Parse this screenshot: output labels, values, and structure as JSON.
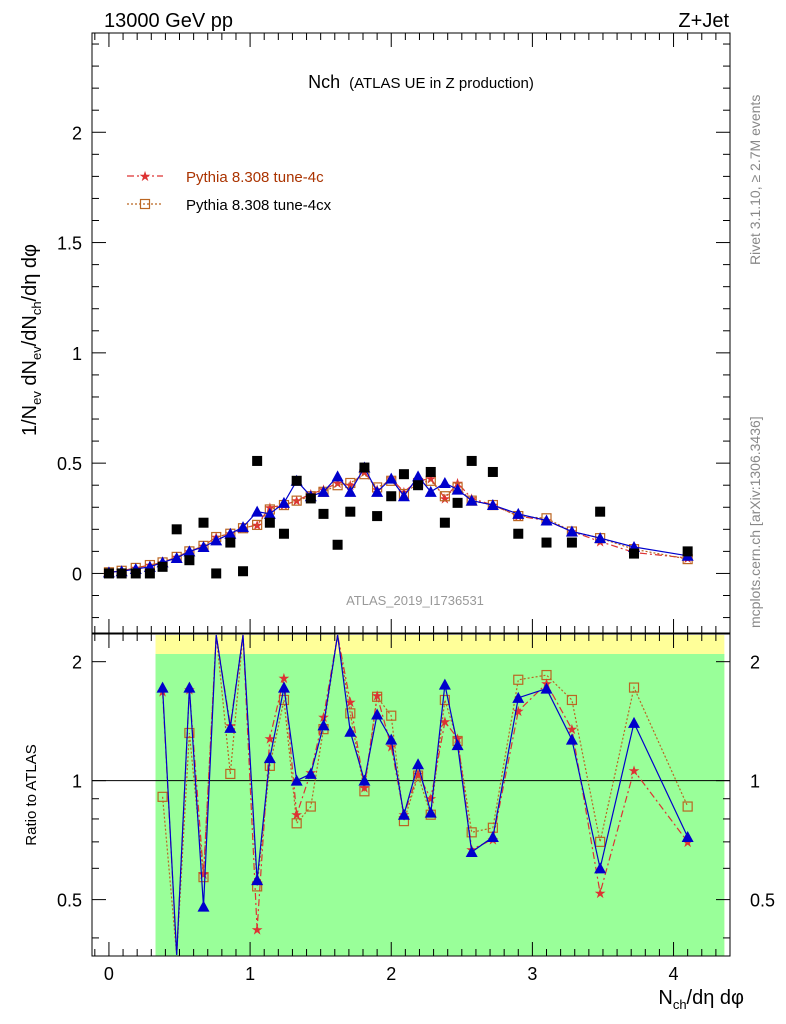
{
  "header": {
    "left": "13000 GeV pp",
    "right": "Z+Jet"
  },
  "side": {
    "rivet": "Rivet 3.1.10, ≥ 2.7M events",
    "mcplots": "mcplots.cern.ch [arXiv:1306.3436]"
  },
  "main_panel": {
    "title_main": "Nch",
    "title_sub": "(ATLAS UE in Z production)",
    "watermark": "ATLAS_2019_I1736531",
    "ylabel_parts": [
      "1/N",
      "ev",
      " dN",
      "ev",
      "/dN",
      "ch",
      "/dη dφ"
    ]
  },
  "ratio_panel": {
    "ylabel": "Ratio to ATLAS"
  },
  "xlabel_parts": [
    "N",
    "ch",
    "/dη dφ"
  ],
  "colors": {
    "data": "#000000",
    "tune_4c": "#dd3333",
    "tune_4cx": "#bb6622",
    "default": "#0000cc",
    "band_green": "#99ff99",
    "band_yellow": "#ffff99",
    "legend_4c_text": "#aa3300"
  },
  "chart_data": {
    "type": "scatter",
    "xlim": [
      -0.12,
      4.4
    ],
    "main_ylim": [
      -0.27,
      2.45
    ],
    "ratio_ylim": [
      0.36,
      2.35
    ],
    "ratio_scale": "log",
    "x_ticks": [
      "0",
      "1",
      "2",
      "3",
      "4"
    ],
    "main_y_ticks": [
      "0",
      "0.5",
      "1",
      "1.5",
      "2"
    ],
    "ratio_y_ticks": [
      "0.5",
      "1",
      "2"
    ],
    "x": [
      0.0,
      0.09,
      0.19,
      0.29,
      0.38,
      0.48,
      0.57,
      0.67,
      0.76,
      0.86,
      0.95,
      1.05,
      1.14,
      1.24,
      1.33,
      1.43,
      1.52,
      1.62,
      1.71,
      1.81,
      1.9,
      2.0,
      2.09,
      2.19,
      2.28,
      2.38,
      2.47,
      2.57,
      2.72,
      2.9,
      3.1,
      3.28,
      3.48,
      3.72,
      4.1
    ],
    "series": [
      {
        "name": "",
        "key": "data",
        "values": [
          0.0,
          0.0,
          0.0,
          0.0,
          0.03,
          0.2,
          0.06,
          0.23,
          0.0,
          0.14,
          0.01,
          0.51,
          0.23,
          0.18,
          0.42,
          0.34,
          0.27,
          0.13,
          0.28,
          0.48,
          0.26,
          0.35,
          0.45,
          0.4,
          0.46,
          0.23,
          0.32,
          0.51,
          0.46,
          0.18,
          0.14,
          0.14,
          0.28,
          0.09,
          0.1
        ]
      },
      {
        "name": "Pythia 8.308 tune-4c",
        "key": "tune_4c",
        "values": [
          0.005,
          0.012,
          0.025,
          0.038,
          0.05,
          0.075,
          0.1,
          0.125,
          0.165,
          0.18,
          0.205,
          0.22,
          0.3,
          0.31,
          0.33,
          0.36,
          0.38,
          0.41,
          0.4,
          0.46,
          0.38,
          0.43,
          0.37,
          0.42,
          0.43,
          0.34,
          0.41,
          0.34,
          0.31,
          0.26,
          0.24,
          0.19,
          0.145,
          0.095,
          0.07
        ]
      },
      {
        "name": "Pythia 8.308 tune-4cx",
        "key": "tune_4cx",
        "values": [
          0.005,
          0.012,
          0.025,
          0.038,
          0.05,
          0.075,
          0.1,
          0.125,
          0.165,
          0.18,
          0.205,
          0.22,
          0.29,
          0.31,
          0.33,
          0.35,
          0.37,
          0.4,
          0.41,
          0.45,
          0.39,
          0.42,
          0.36,
          0.41,
          0.42,
          0.35,
          0.39,
          0.33,
          0.31,
          0.26,
          0.25,
          0.19,
          0.16,
          0.11,
          0.065
        ]
      },
      {
        "name": "",
        "key": "default",
        "values": [
          0.005,
          0.01,
          0.02,
          0.03,
          0.05,
          0.07,
          0.1,
          0.12,
          0.15,
          0.18,
          0.21,
          0.28,
          0.27,
          0.32,
          0.42,
          0.35,
          0.37,
          0.44,
          0.37,
          0.48,
          0.37,
          0.43,
          0.35,
          0.44,
          0.37,
          0.41,
          0.38,
          0.33,
          0.31,
          0.27,
          0.24,
          0.19,
          0.16,
          0.12,
          0.08
        ]
      }
    ],
    "ratio_series": [
      {
        "key": "tune_4c",
        "values": [
          null,
          null,
          null,
          null,
          1.68,
          0.33,
          1.7,
          0.58,
          3.0,
          1.38,
          3.0,
          0.42,
          1.28,
          1.82,
          0.82,
          1.05,
          1.45,
          3.0,
          1.58,
          0.96,
          1.64,
          1.22,
          0.82,
          1.04,
          0.9,
          1.41,
          1.28,
          0.67,
          0.71,
          1.5,
          1.76,
          1.35,
          0.52,
          1.06,
          0.7
        ]
      },
      {
        "key": "tune_4cx",
        "values": [
          null,
          null,
          null,
          null,
          0.91,
          0.33,
          1.32,
          0.57,
          3.0,
          1.04,
          3.0,
          0.54,
          1.09,
          1.6,
          0.78,
          0.86,
          1.35,
          3.0,
          1.48,
          0.94,
          1.63,
          1.46,
          0.79,
          1.03,
          0.82,
          1.6,
          1.26,
          0.74,
          0.76,
          1.8,
          1.85,
          1.6,
          0.7,
          1.72,
          0.86
        ]
      },
      {
        "key": "default",
        "values": [
          null,
          null,
          null,
          null,
          1.72,
          0.33,
          1.72,
          0.48,
          3.0,
          1.36,
          3.0,
          0.56,
          1.14,
          1.72,
          1.0,
          1.04,
          1.38,
          3.0,
          1.33,
          1.0,
          1.47,
          1.27,
          0.82,
          1.1,
          0.83,
          1.75,
          1.23,
          0.66,
          0.72,
          1.62,
          1.71,
          1.27,
          0.6,
          1.4,
          0.72
        ]
      }
    ],
    "band_x_start": 0.33,
    "band_x_end": 4.36
  }
}
